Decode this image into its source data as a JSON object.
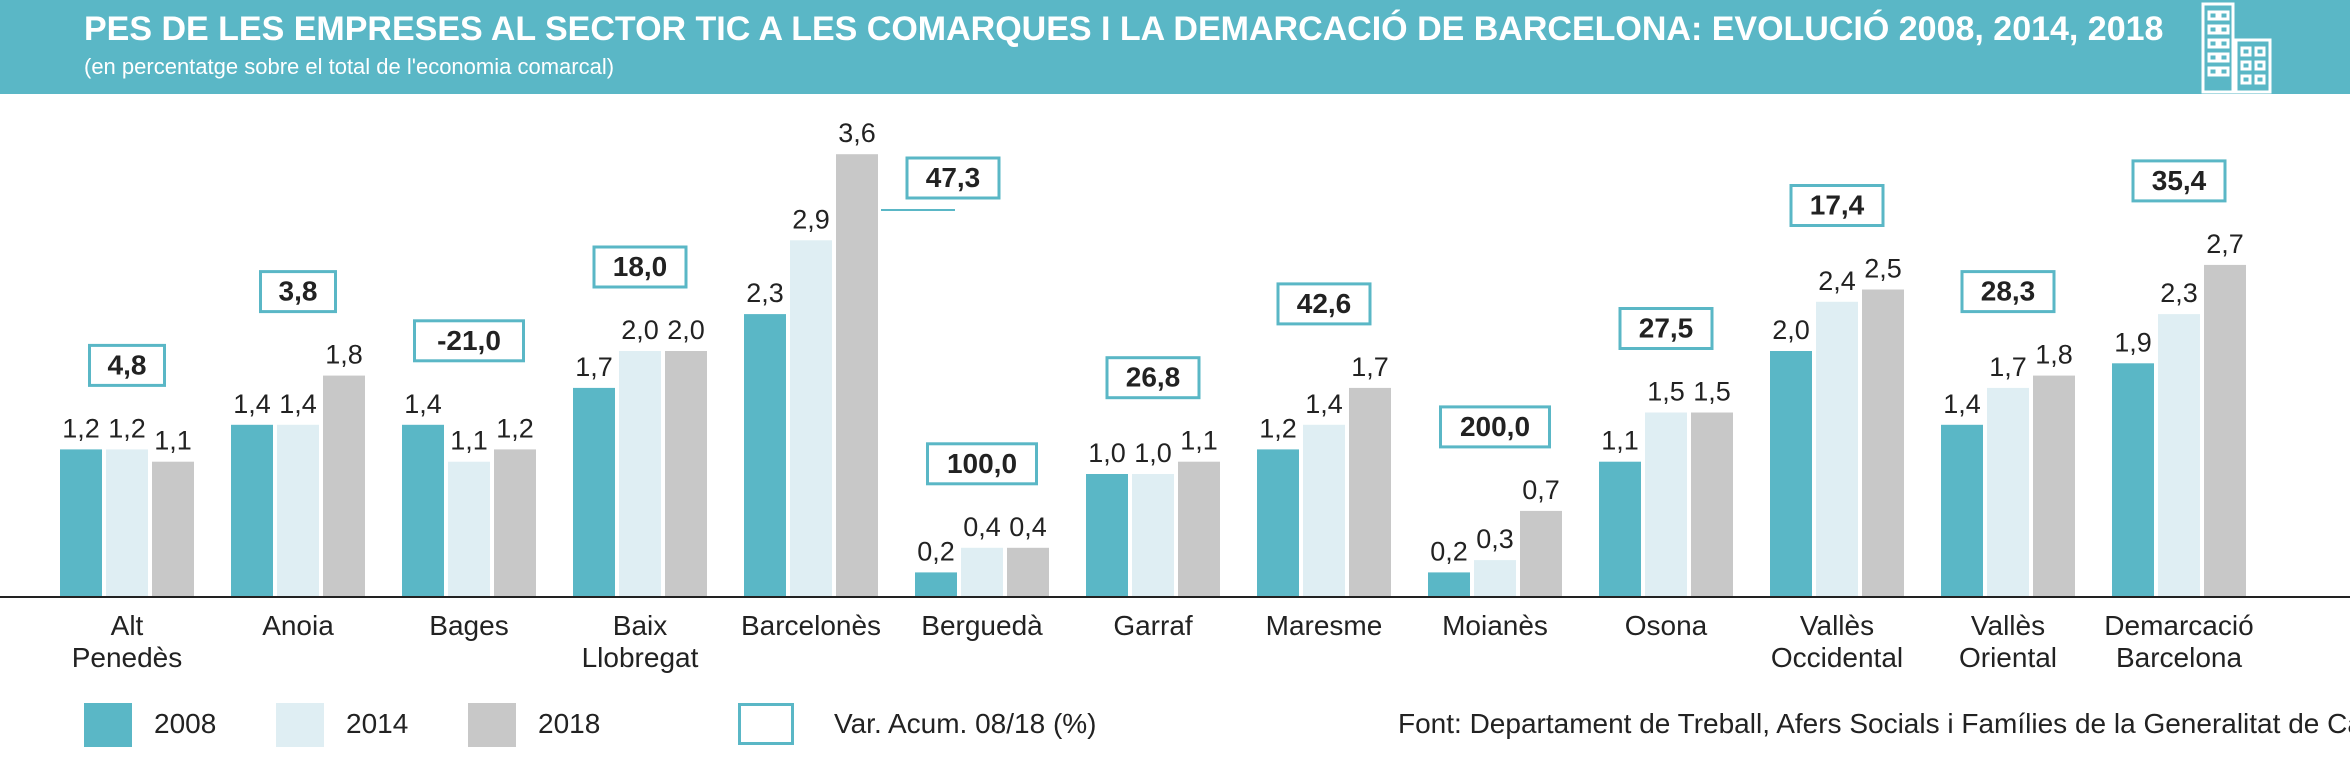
{
  "header": {
    "title": "PES DE LES EMPRESES AL SECTOR TIC A LES COMARQUES I LA DEMARCACIÓ DE BARCELONA: EVOLUCIÓ 2008, 2014, 2018",
    "subtitle": "(en percentatge sobre el total de l'economia comarcal)",
    "logo_icon": "buildings-icon"
  },
  "colors": {
    "banner": "#5ab7c6",
    "s2008": "#5ab7c6",
    "s2014": "#dfeef3",
    "s2018": "#c8c8c8",
    "var_box": "#5ab7c6",
    "axis": "#222222"
  },
  "chart_data": {
    "type": "bar",
    "title": "PES DE LES EMPRESES AL SECTOR TIC A LES COMARQUES I LA DEMARCACIÓ DE BARCELONA: EVOLUCIÓ 2008, 2014, 2018",
    "subtitle": "(en percentatge sobre el total de l'economia comarcal)",
    "ylim": [
      0,
      4
    ],
    "categories": [
      [
        "Alt",
        "Penedès"
      ],
      [
        "Anoia"
      ],
      [
        "Bages"
      ],
      [
        "Baix",
        "Llobregat"
      ],
      [
        "Barcelonès"
      ],
      [
        "Berguedà"
      ],
      [
        "Garraf"
      ],
      [
        "Maresme"
      ],
      [
        "Moianès"
      ],
      [
        "Osona"
      ],
      [
        "Vallès",
        "Occidental"
      ],
      [
        "Vallès",
        "Oriental"
      ],
      [
        "Demarcació",
        "Barcelona"
      ]
    ],
    "series": [
      {
        "name": "2008",
        "values": [
          1.2,
          1.4,
          1.4,
          1.7,
          2.3,
          0.2,
          1.0,
          1.2,
          0.2,
          1.1,
          2.0,
          1.4,
          1.9
        ],
        "labels": [
          "1,2",
          "1,4",
          "1,4",
          "1,7",
          "2,3",
          "0,2",
          "1,0",
          "1,2",
          "0,2",
          "1,1",
          "2,0",
          "1,4",
          "1,9"
        ]
      },
      {
        "name": "2014",
        "values": [
          1.2,
          1.4,
          1.1,
          2.0,
          2.9,
          0.4,
          1.0,
          1.4,
          0.3,
          1.5,
          2.4,
          1.7,
          2.3
        ],
        "labels": [
          "1,2",
          "1,4",
          "1,1",
          "2,0",
          "2,9",
          "0,4",
          "1,0",
          "1,4",
          "0,3",
          "1,5",
          "2,4",
          "1,7",
          "2,3"
        ]
      },
      {
        "name": "2018",
        "values": [
          1.1,
          1.8,
          1.2,
          2.0,
          3.6,
          0.4,
          1.1,
          1.7,
          0.7,
          1.5,
          2.5,
          1.8,
          2.7
        ],
        "labels": [
          "1,1",
          "1,8",
          "1,2",
          "2,0",
          "3,6",
          "0,4",
          "1,1",
          "1,7",
          "0,7",
          "1,5",
          "2,5",
          "1,8",
          "2,7"
        ]
      }
    ],
    "variation": {
      "name": "Var. Acum. 08/18 (%)",
      "values": [
        4.8,
        3.8,
        -21.0,
        18.0,
        47.3,
        100.0,
        26.8,
        42.6,
        200.0,
        27.5,
        17.4,
        28.3,
        35.4
      ],
      "labels": [
        "4,8",
        "3,8",
        "-21,0",
        "18,0",
        "47,3",
        "100,0",
        "26,8",
        "42,6",
        "200,0",
        "27,5",
        "17,4",
        "28,3",
        "35,4"
      ]
    }
  },
  "legend": {
    "s2008": "2008",
    "s2014": "2014",
    "s2018": "2018",
    "variation": "Var. Acum. 08/18 (%)"
  },
  "source": "Font: Departament de Treball, Afers Socials i Famílies de la Generalitat de Catalunya"
}
